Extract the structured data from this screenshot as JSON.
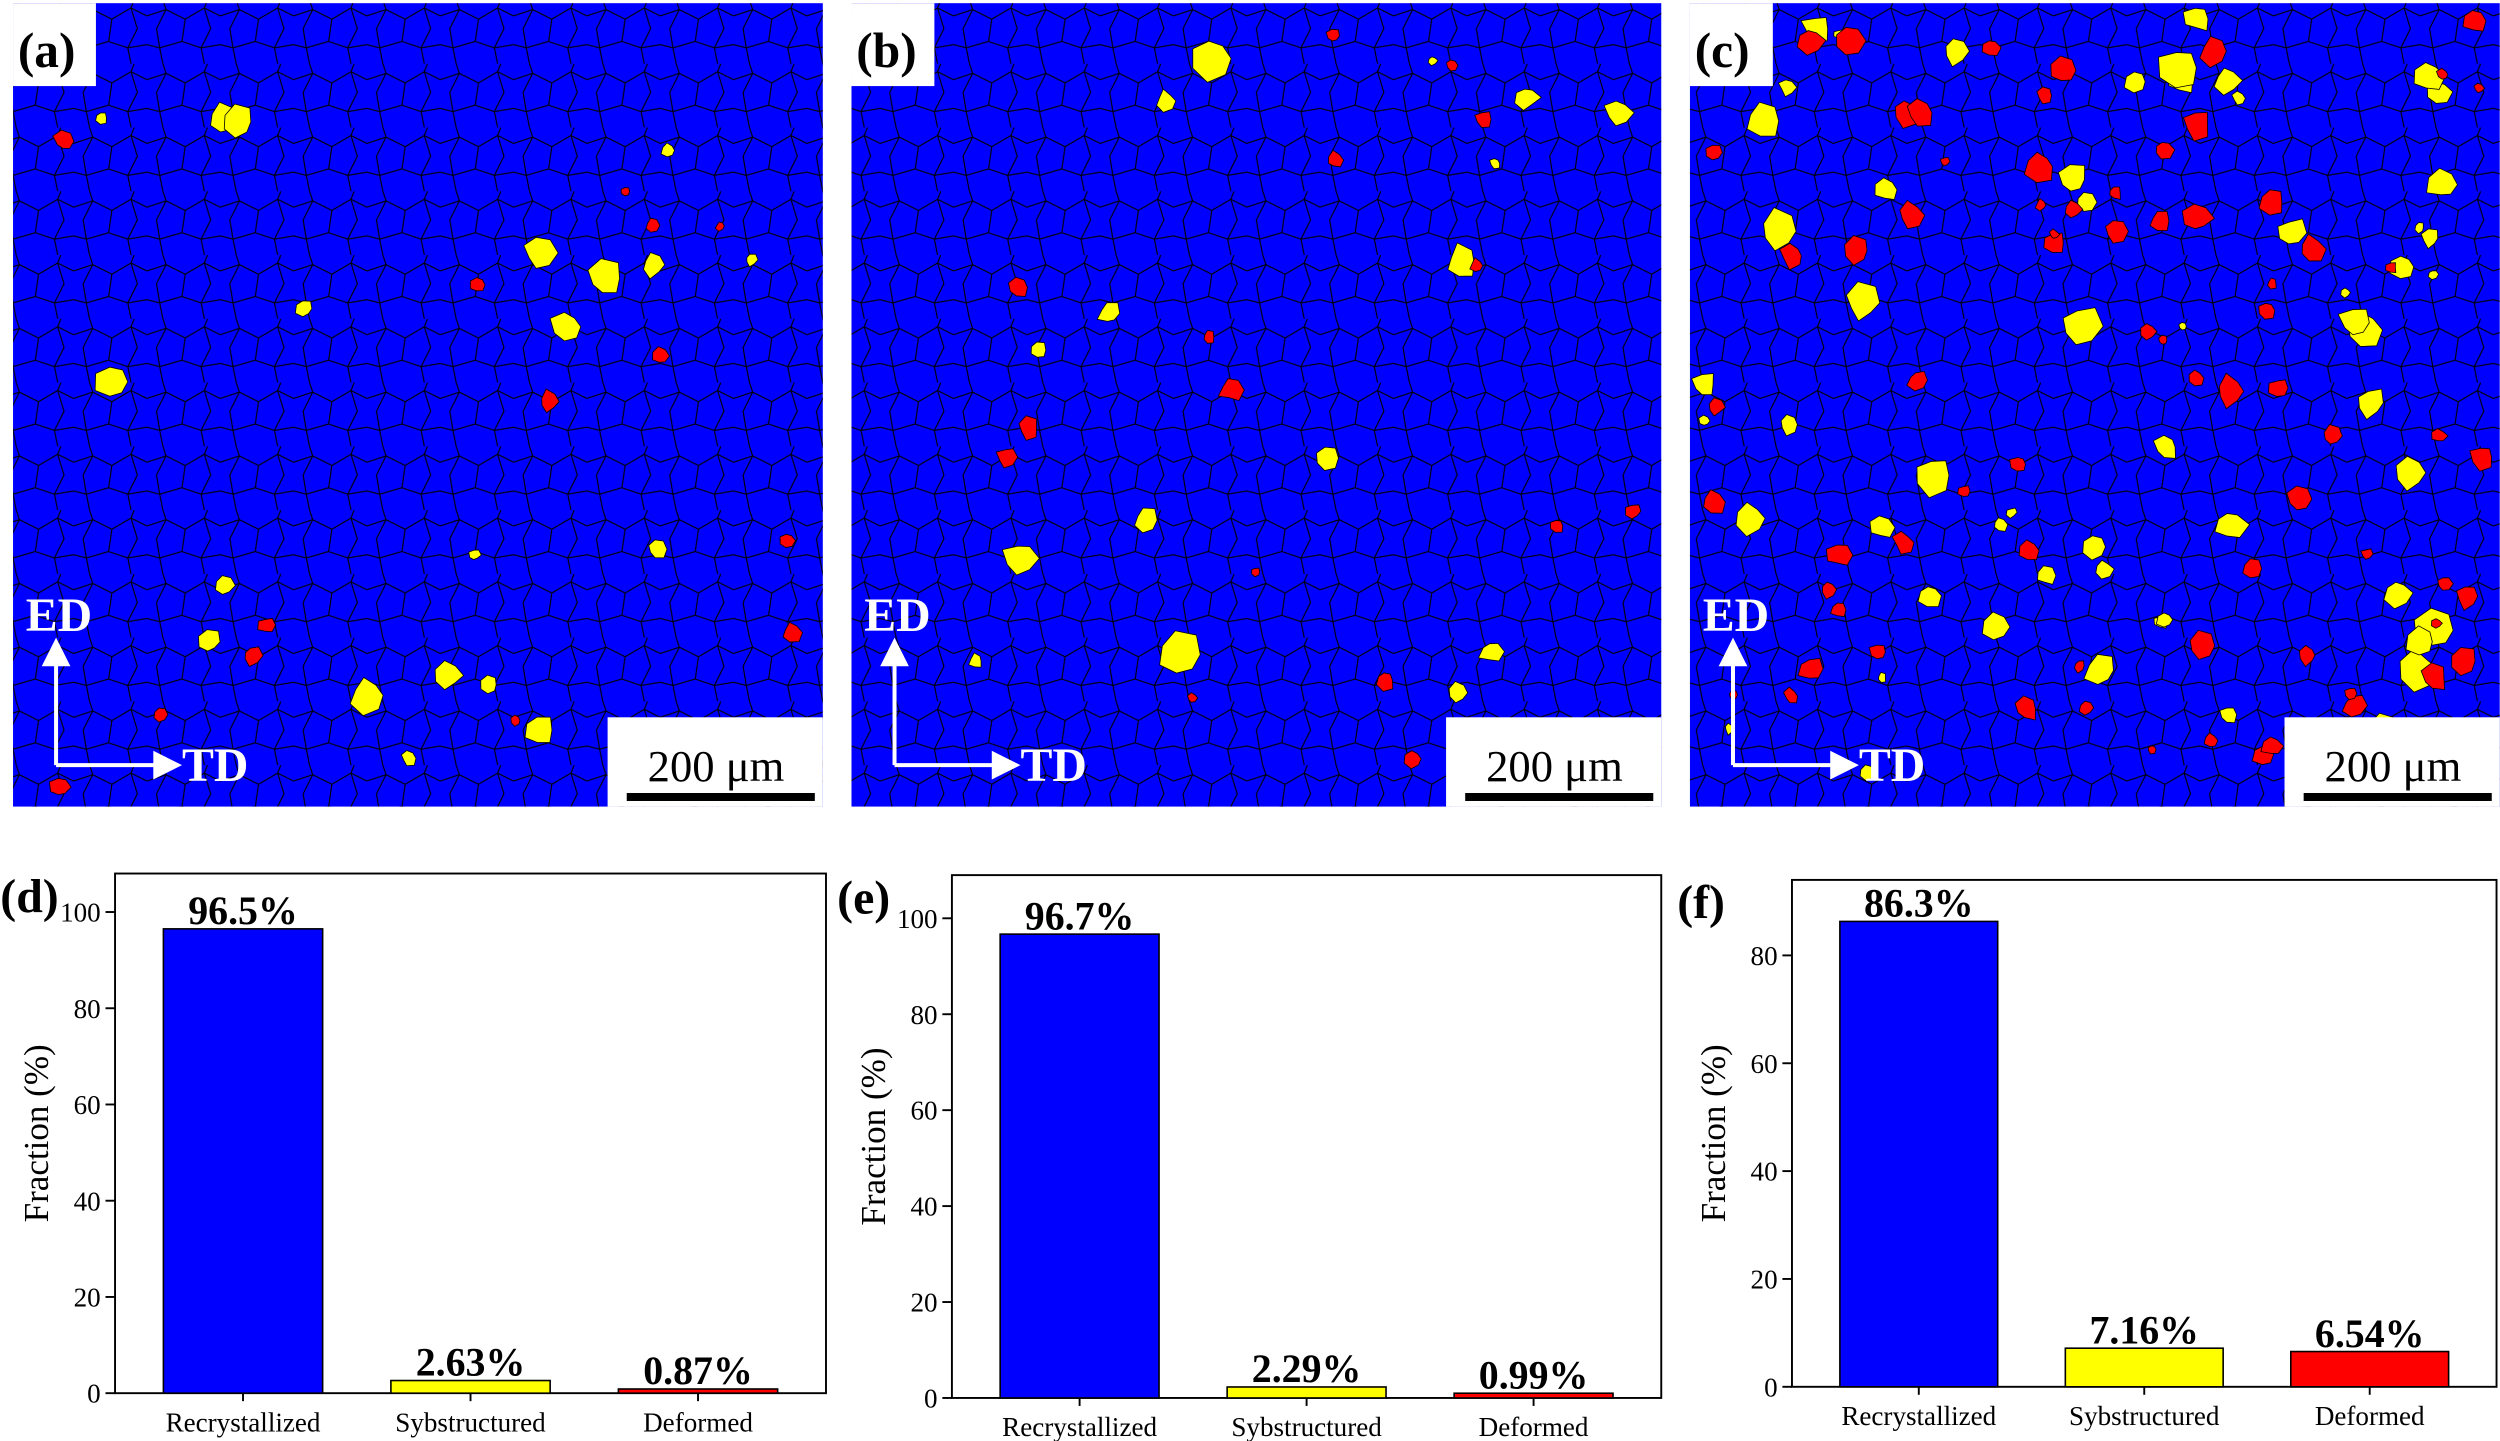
{
  "maps": [
    {
      "label": "(a)",
      "scale_bar": "200 μm",
      "axis_vertical": "ED",
      "axis_horizontal": "TD"
    },
    {
      "label": "(b)",
      "scale_bar": "200 μm",
      "axis_vertical": "ED",
      "axis_horizontal": "TD"
    },
    {
      "label": "(c)",
      "scale_bar": "200 μm",
      "axis_vertical": "ED",
      "axis_horizontal": "TD"
    }
  ],
  "chart_data": [
    {
      "type": "bar",
      "panel": "(d)",
      "ylabel": "Fraction (%)",
      "categories": [
        "Recrystallized",
        "Sybstructured",
        "Deformed"
      ],
      "values": [
        96.5,
        2.63,
        0.87
      ],
      "value_labels": [
        "96.5%",
        "2.63%",
        "0.87%"
      ],
      "colors": [
        "#0000ff",
        "#ffff00",
        "#ff0000"
      ],
      "ylim": [
        0,
        108
      ],
      "yticks": [
        0,
        20,
        40,
        60,
        80,
        100
      ]
    },
    {
      "type": "bar",
      "panel": "(e)",
      "ylabel": "Fraction (%)",
      "categories": [
        "Recrystallized",
        "Sybstructured",
        "Deformed"
      ],
      "values": [
        96.7,
        2.29,
        0.99
      ],
      "value_labels": [
        "96.7%",
        "2.29%",
        "0.99%"
      ],
      "colors": [
        "#0000ff",
        "#ffff00",
        "#ff0000"
      ],
      "ylim": [
        0,
        109
      ],
      "yticks": [
        0,
        20,
        40,
        60,
        80,
        100
      ]
    },
    {
      "type": "bar",
      "panel": "(f)",
      "ylabel": "Fraction (%)",
      "categories": [
        "Recrystallized",
        "Sybstructured",
        "Deformed"
      ],
      "values": [
        86.3,
        7.16,
        6.54
      ],
      "value_labels": [
        "86.3%",
        "7.16%",
        "6.54%"
      ],
      "colors": [
        "#0000ff",
        "#ffff00",
        "#ff0000"
      ],
      "ylim": [
        0,
        94
      ],
      "yticks": [
        0,
        20,
        40,
        60,
        80
      ]
    }
  ]
}
